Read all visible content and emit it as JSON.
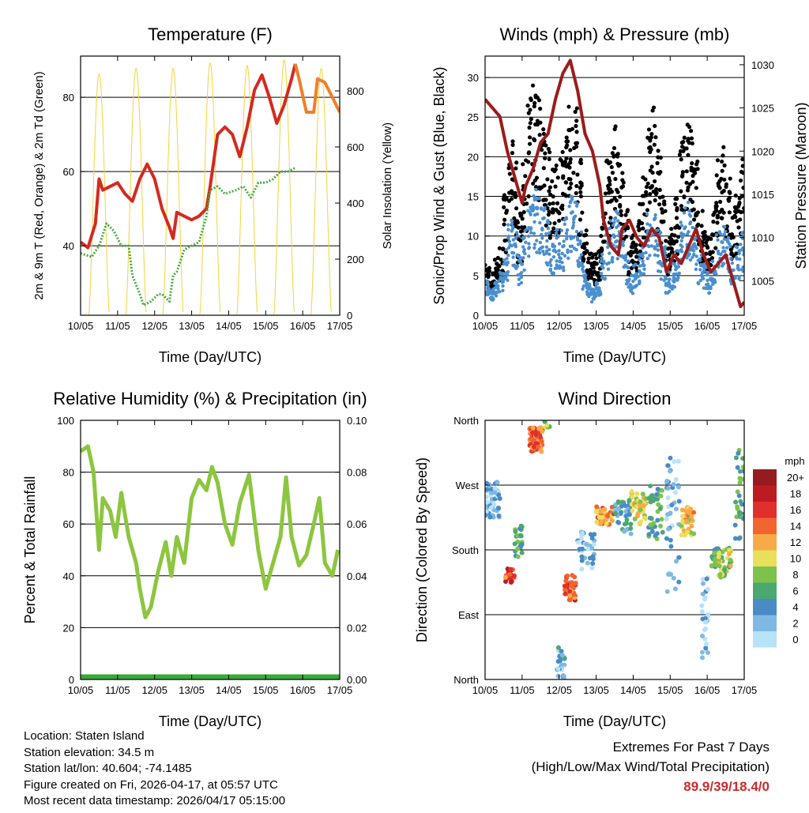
{
  "chart_data": [
    {
      "type": "line",
      "title": "Temperature (F)",
      "xlabel": "Time (Day/UTC)",
      "ylabel": "2m & 9m T (Red, Orange) & 2m Td (Green)",
      "ylabel_right": "Solar Insolation (Yellow)",
      "xticks": [
        "10/05",
        "11/05",
        "12/05",
        "13/05",
        "14/05",
        "15/05",
        "16/05",
        "17/05"
      ],
      "xlim": [
        0,
        7
      ],
      "ylim": [
        21.3,
        91.1
      ],
      "yticks": [
        40,
        60,
        80
      ],
      "ylim_right": [
        0,
        924
      ],
      "yticks_right": [
        0,
        200,
        400,
        600,
        800
      ],
      "grid": [
        40,
        60,
        80
      ],
      "series": [
        {
          "name": "2m T",
          "color": "#d42a20",
          "x": [
            0,
            0.2,
            0.4,
            0.5,
            0.6,
            0.8,
            1.0,
            1.2,
            1.4,
            1.6,
            1.8,
            2.0,
            2.2,
            2.4,
            2.5,
            2.6,
            2.8,
            3.0,
            3.2,
            3.4,
            3.5,
            3.7,
            3.9,
            4.1,
            4.3,
            4.5,
            4.7,
            4.9,
            5.1,
            5.3,
            5.5,
            5.7,
            5.8
          ],
          "y": [
            41,
            39.5,
            46,
            58,
            55,
            56,
            57,
            54,
            52,
            58,
            62,
            58,
            50,
            45,
            42,
            49,
            48,
            47,
            48,
            50,
            56,
            70,
            72,
            70,
            64,
            72,
            82,
            86,
            80,
            73,
            78,
            85,
            89
          ]
        },
        {
          "name": "9m T",
          "color": "#f07f2a",
          "x": [
            5.8,
            5.9,
            6.1,
            6.3,
            6.4,
            6.6,
            6.8,
            7.0
          ],
          "y": [
            89,
            85,
            76,
            76,
            85,
            84,
            80,
            76
          ]
        },
        {
          "name": "2m Td",
          "color": "#45ad3a",
          "x": [
            0,
            0.3,
            0.5,
            0.7,
            0.9,
            1.1,
            1.3,
            1.4,
            1.6,
            1.7,
            1.9,
            2.1,
            2.2,
            2.4,
            2.5,
            2.6,
            2.8,
            3.0,
            3.2,
            3.4,
            3.5,
            3.7,
            3.9,
            4.2,
            4.4,
            4.6,
            4.8,
            5.0,
            5.2,
            5.4,
            5.6,
            5.8
          ],
          "y": [
            38,
            37,
            40,
            46,
            44,
            40,
            40,
            32,
            27,
            24,
            25,
            27,
            27,
            25,
            32,
            33,
            39,
            40,
            41,
            48,
            55,
            56,
            54,
            55,
            56,
            53,
            57,
            57,
            58,
            60,
            60,
            61
          ]
        },
        {
          "name": "Solar Insolation",
          "color": "#f7d23a",
          "axis": "right",
          "peak_day": [
            0.5,
            1.5,
            2.5,
            3.5,
            4.5,
            5.5,
            6.5
          ],
          "peak_value": [
            860,
            880,
            880,
            900,
            890,
            910,
            880
          ]
        }
      ]
    },
    {
      "type": "scatter",
      "title": "Winds (mph) & Pressure (mb)",
      "xlabel": "Time (Day/UTC)",
      "ylabel": "Sonic/Prop Wind & Gust (Blue, Black)",
      "ylabel_right": "Station Pressure (Maroon)",
      "xticks": [
        "10/05",
        "11/05",
        "12/05",
        "13/05",
        "14/05",
        "15/05",
        "16/05",
        "17/05"
      ],
      "xlim": [
        0,
        7
      ],
      "ylim": [
        0,
        32.7
      ],
      "yticks": [
        0,
        5,
        10,
        15,
        20,
        25,
        30
      ],
      "ylim_right": [
        1001,
        1031
      ],
      "yticks_right": [
        1005,
        1010,
        1015,
        1020,
        1025,
        1030
      ],
      "grid": [
        5,
        10,
        15,
        20,
        25,
        30
      ],
      "sample_interval_hours": 3,
      "series": [
        {
          "name": "Gust",
          "color": "#000000",
          "values": [
            6,
            5,
            7,
            8,
            14,
            20,
            18,
            12,
            18,
            25,
            28,
            26,
            24,
            20,
            17,
            18,
            19,
            22,
            26,
            25,
            18,
            10,
            8,
            7,
            8,
            12,
            18,
            20,
            22,
            18,
            13,
            9,
            10,
            13,
            17,
            22,
            24,
            19,
            14,
            9,
            11,
            14,
            20,
            24,
            22,
            18,
            12,
            10,
            9,
            13,
            18,
            20,
            16,
            12,
            14,
            18
          ]
        },
        {
          "name": "Wind",
          "color": "#4a8fcf",
          "values": [
            4,
            3,
            4,
            5,
            8,
            11,
            10,
            7,
            10,
            13,
            15,
            14,
            13,
            11,
            9,
            10,
            10,
            12,
            14,
            13,
            10,
            6,
            4,
            3,
            4,
            7,
            10,
            11,
            12,
            10,
            7,
            5,
            6,
            7,
            9,
            12,
            13,
            10,
            8,
            5,
            6,
            8,
            11,
            13,
            12,
            10,
            7,
            6,
            5,
            7,
            10,
            11,
            9,
            7,
            8,
            10
          ]
        },
        {
          "name": "Pressure",
          "color": "#9b1c1c",
          "axis": "right",
          "x": [
            0,
            0.2,
            0.4,
            0.6,
            0.8,
            1.0,
            1.1,
            1.3,
            1.5,
            1.7,
            1.9,
            2.1,
            2.3,
            2.5,
            2.7,
            2.9,
            3.1,
            3.2,
            3.4,
            3.6,
            3.7,
            3.9,
            4.1,
            4.3,
            4.5,
            4.7,
            4.9,
            5.1,
            5.3,
            5.5,
            5.7,
            5.9,
            6.1,
            6.3,
            6.5,
            6.7,
            6.9,
            7.0
          ],
          "y": [
            1026,
            1025,
            1024,
            1020,
            1017,
            1014,
            1016,
            1018,
            1021,
            1022,
            1026,
            1029,
            1030.5,
            1027,
            1022,
            1020,
            1016,
            1012,
            1009,
            1008,
            1011,
            1012,
            1010,
            1009,
            1011,
            1010,
            1006,
            1008,
            1007,
            1009,
            1011,
            1008,
            1006,
            1007,
            1008,
            1005,
            1002,
            1002.5
          ]
        }
      ]
    },
    {
      "type": "line",
      "title": "Relative Humidity (%) & Precipitation (in)",
      "xlabel": "Time (Day/UTC)",
      "ylabel": "Percent & Total Rainfall",
      "xticks": [
        "10/05",
        "11/05",
        "12/05",
        "13/05",
        "14/05",
        "15/05",
        "16/05",
        "17/05"
      ],
      "xlim": [
        0,
        7
      ],
      "ylim": [
        0,
        100
      ],
      "yticks": [
        0,
        20,
        40,
        60,
        80,
        100
      ],
      "ylim_right": [
        0,
        0.1
      ],
      "yticks_right": [
        "0.00",
        "0.02",
        "0.04",
        "0.06",
        "0.08",
        "0.10"
      ],
      "grid": [
        20,
        40,
        60,
        80
      ],
      "series": [
        {
          "name": "Relative Humidity",
          "color": "#8cc63f",
          "x": [
            0,
            0.2,
            0.35,
            0.5,
            0.6,
            0.8,
            0.95,
            1.1,
            1.3,
            1.5,
            1.6,
            1.75,
            1.9,
            2.1,
            2.3,
            2.45,
            2.6,
            2.8,
            3.0,
            3.2,
            3.4,
            3.55,
            3.7,
            3.9,
            4.1,
            4.3,
            4.55,
            4.8,
            5.0,
            5.2,
            5.4,
            5.55,
            5.7,
            5.9,
            6.1,
            6.3,
            6.45,
            6.6,
            6.8,
            6.95
          ],
          "y": [
            88,
            90,
            80,
            50,
            70,
            65,
            55,
            72,
            55,
            45,
            35,
            24,
            28,
            42,
            53,
            40,
            55,
            45,
            70,
            77,
            73,
            82,
            76,
            60,
            52,
            68,
            79,
            50,
            35,
            45,
            55,
            78,
            55,
            44,
            48,
            60,
            70,
            45,
            40,
            50
          ]
        },
        {
          "name": "Total Precipitation",
          "color": "#3aa83a",
          "axis": "right",
          "x": [
            0,
            7
          ],
          "y": [
            0,
            0
          ]
        }
      ]
    },
    {
      "type": "scatter",
      "title": "Wind Direction",
      "xlabel": "Time (Day/UTC)",
      "ylabel": "Direction (Colored By Speed)",
      "xticks": [
        "10/05",
        "11/05",
        "12/05",
        "13/05",
        "14/05",
        "15/05",
        "16/05",
        "17/05"
      ],
      "xlim": [
        0,
        7
      ],
      "ylim": [
        0,
        360
      ],
      "yticks": [
        {
          "v": 0,
          "label": "North"
        },
        {
          "v": 90,
          "label": "East"
        },
        {
          "v": 180,
          "label": "South"
        },
        {
          "v": 270,
          "label": "West"
        },
        {
          "v": 360,
          "label": "North"
        }
      ],
      "grid": [
        90,
        180,
        270
      ],
      "legend": {
        "title": "mph",
        "labels": [
          "0",
          "2",
          "4",
          "6",
          "8",
          "10",
          "12",
          "14",
          "16",
          "18",
          "20+"
        ],
        "colors": [
          "#b8e2f8",
          "#7fb9e3",
          "#4a8bc6",
          "#4aa870",
          "#7dc24d",
          "#e8e05a",
          "#f9aa48",
          "#f26430",
          "#e0302b",
          "#bd1b22",
          "#951b1e"
        ],
        "placement": "right"
      },
      "clusters": [
        {
          "x": [
            0,
            0.4
          ],
          "dir": [
            225,
            275
          ],
          "speed": 3,
          "n": 60
        },
        {
          "x": [
            0.55,
            0.8
          ],
          "dir": [
            135,
            155
          ],
          "speed": 16,
          "n": 20
        },
        {
          "x": [
            0.8,
            1.0
          ],
          "dir": [
            170,
            215
          ],
          "speed": 7,
          "n": 25
        },
        {
          "x": [
            1.2,
            1.55
          ],
          "dir": [
            315,
            350
          ],
          "speed": 15,
          "n": 70
        },
        {
          "x": [
            1.6,
            1.75
          ],
          "dir": [
            350,
            360
          ],
          "speed": 9,
          "n": 8
        },
        {
          "x": [
            1.95,
            2.15
          ],
          "dir": [
            0,
            45
          ],
          "speed": 4,
          "n": 30
        },
        {
          "x": [
            2.15,
            2.45
          ],
          "dir": [
            110,
            145
          ],
          "speed": 16,
          "n": 40
        },
        {
          "x": [
            2.5,
            2.95
          ],
          "dir": [
            150,
            205
          ],
          "speed": 3,
          "n": 35
        },
        {
          "x": [
            3.0,
            3.5
          ],
          "dir": [
            215,
            240
          ],
          "speed": 14,
          "n": 45
        },
        {
          "x": [
            3.5,
            3.95
          ],
          "dir": [
            200,
            250
          ],
          "speed": 5,
          "n": 40
        },
        {
          "x": [
            3.95,
            4.35
          ],
          "dir": [
            215,
            265
          ],
          "speed": 11,
          "n": 45
        },
        {
          "x": [
            4.4,
            4.8
          ],
          "dir": [
            195,
            270
          ],
          "speed": 7,
          "n": 40
        },
        {
          "x": [
            4.9,
            5.25
          ],
          "dir": [
            120,
            310
          ],
          "speed": 3,
          "n": 45
        },
        {
          "x": [
            5.3,
            5.65
          ],
          "dir": [
            200,
            240
          ],
          "speed": 12,
          "n": 40
        },
        {
          "x": [
            5.85,
            6.05
          ],
          "dir": [
            30,
            150
          ],
          "speed": 3,
          "n": 30
        },
        {
          "x": [
            6.1,
            6.3
          ],
          "dir": [
            155,
            185
          ],
          "speed": 7,
          "n": 25
        },
        {
          "x": [
            6.3,
            6.65
          ],
          "dir": [
            140,
            185
          ],
          "speed": 10,
          "n": 35
        },
        {
          "x": [
            6.75,
            7.0
          ],
          "dir": [
            190,
            320
          ],
          "speed": 7,
          "n": 30
        }
      ]
    }
  ],
  "info": {
    "location": "Location: Staten Island",
    "elevation": "Station elevation: 34.5 m",
    "latlon": "Station lat/lon: 40.604; -74.1485",
    "created": "Figure created on Fri, 2026-04-17, at 05:57 UTC",
    "timestamp": "Most recent data timestamp: 2026/04/17 05:15:00"
  },
  "extremes": {
    "title": "Extremes For Past 7 Days",
    "subtitle": "(High/Low/Max Wind/Total Precipitation)",
    "values": "89.9/39/18.4/0"
  }
}
